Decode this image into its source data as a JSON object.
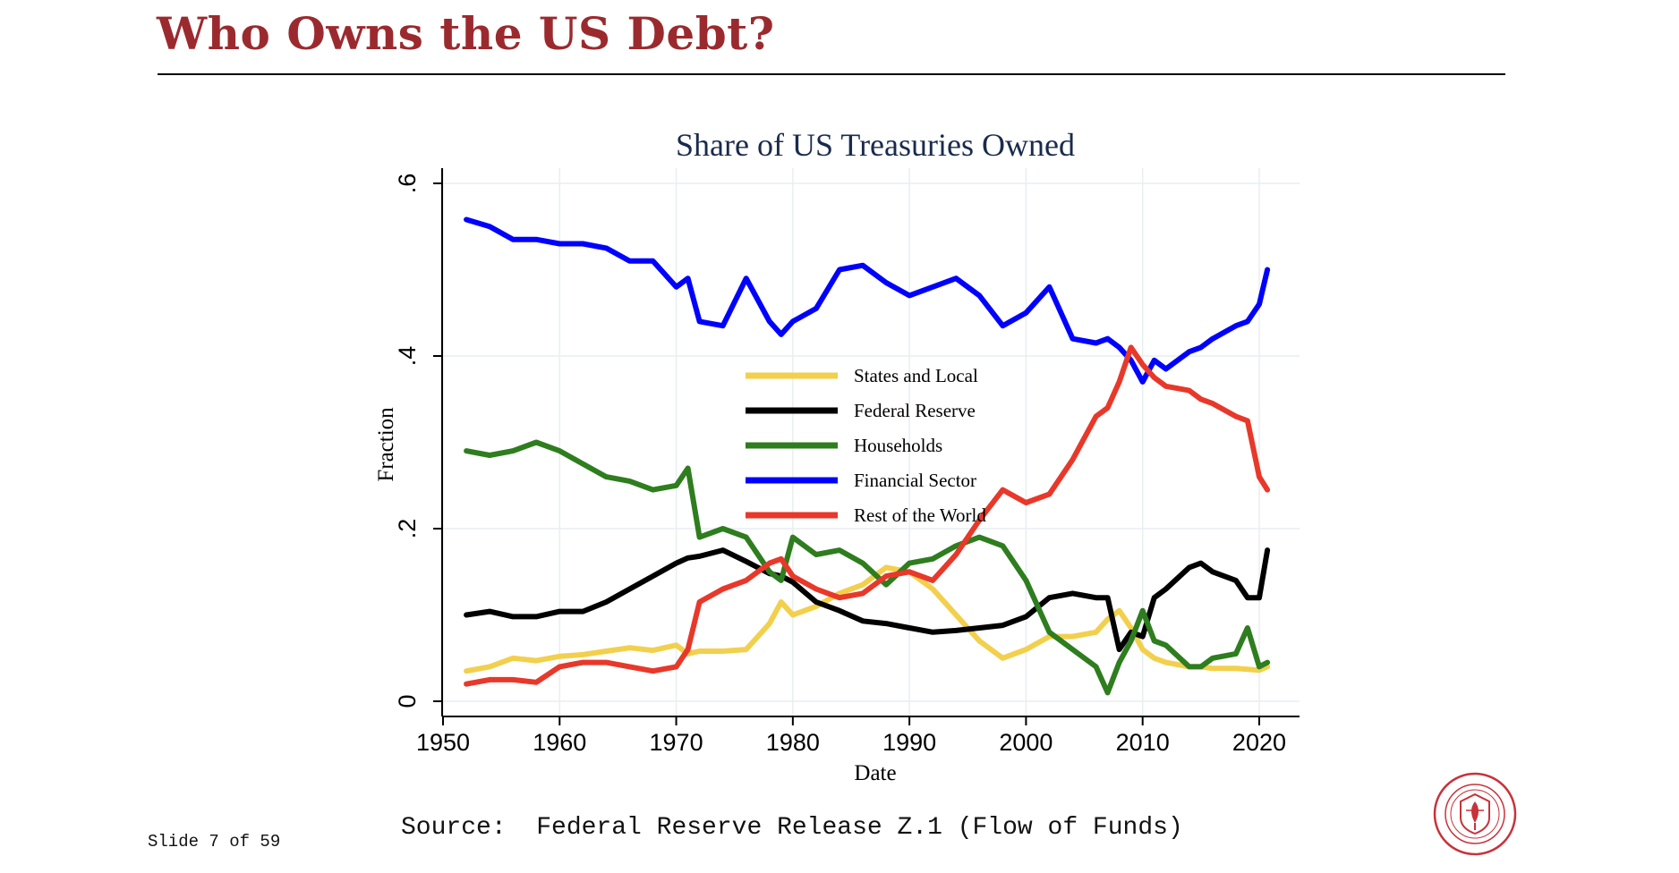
{
  "slide": {
    "title": "Who Owns the US Debt?",
    "source": "Source:  Federal Reserve Release Z.1 (Flow of Funds)",
    "slide_number": "Slide 7 of 59",
    "accent_color": "#9b2a2e"
  },
  "chart_data": {
    "type": "line",
    "title": "Share of US Treasuries Owned",
    "xlabel": "Date",
    "ylabel": "Fraction",
    "xlim": [
      1950,
      2021
    ],
    "ylim": [
      0,
      0.62
    ],
    "x_ticks": [
      1950,
      1960,
      1970,
      1980,
      1990,
      2000,
      2010,
      2020
    ],
    "x_tick_labels": [
      "1950",
      "1960",
      "1970",
      "1980",
      "1990",
      "2000",
      "2010",
      "2020"
    ],
    "y_ticks": [
      0,
      0.2,
      0.4,
      0.6
    ],
    "y_tick_labels": [
      "0",
      ".2",
      ".4",
      ".6"
    ],
    "grid": true,
    "legend_position": "center",
    "x": [
      1952,
      1954,
      1956,
      1958,
      1960,
      1962,
      1964,
      1966,
      1968,
      1970,
      1971,
      1972,
      1974,
      1976,
      1978,
      1979,
      1980,
      1982,
      1984,
      1986,
      1988,
      1990,
      1992,
      1994,
      1996,
      1998,
      2000,
      2002,
      2004,
      2006,
      2007,
      2008,
      2009,
      2010,
      2011,
      2012,
      2014,
      2015,
      2016,
      2018,
      2019,
      2020,
      2020.7
    ],
    "series": [
      {
        "name": "States and Local",
        "color": "#f2d04d",
        "values": [
          0.035,
          0.04,
          0.05,
          0.047,
          0.052,
          0.054,
          0.058,
          0.062,
          0.059,
          0.065,
          0.055,
          0.058,
          0.058,
          0.06,
          0.09,
          0.115,
          0.1,
          0.11,
          0.125,
          0.135,
          0.155,
          0.15,
          0.13,
          0.1,
          0.07,
          0.05,
          0.06,
          0.075,
          0.075,
          0.08,
          0.095,
          0.105,
          0.085,
          0.06,
          0.05,
          0.045,
          0.04,
          0.04,
          0.038,
          0.038,
          0.037,
          0.036,
          0.04
        ]
      },
      {
        "name": "Federal Reserve",
        "color": "#000000",
        "values": [
          0.1,
          0.104,
          0.098,
          0.098,
          0.104,
          0.104,
          0.115,
          0.13,
          0.145,
          0.16,
          0.166,
          0.168,
          0.175,
          0.162,
          0.148,
          0.145,
          0.138,
          0.115,
          0.105,
          0.093,
          0.09,
          0.085,
          0.08,
          0.082,
          0.085,
          0.088,
          0.098,
          0.12,
          0.125,
          0.12,
          0.12,
          0.06,
          0.08,
          0.075,
          0.12,
          0.13,
          0.155,
          0.16,
          0.15,
          0.14,
          0.12,
          0.12,
          0.175
        ]
      },
      {
        "name": "Households",
        "color": "#2e7d1e",
        "values": [
          0.29,
          0.285,
          0.29,
          0.3,
          0.29,
          0.275,
          0.26,
          0.255,
          0.245,
          0.25,
          0.27,
          0.19,
          0.2,
          0.19,
          0.15,
          0.14,
          0.19,
          0.17,
          0.175,
          0.16,
          0.135,
          0.16,
          0.165,
          0.18,
          0.19,
          0.18,
          0.14,
          0.08,
          0.06,
          0.04,
          0.01,
          0.045,
          0.07,
          0.105,
          0.07,
          0.065,
          0.04,
          0.04,
          0.05,
          0.055,
          0.085,
          0.04,
          0.045
        ]
      },
      {
        "name": "Financial Sector",
        "color": "#0000ff",
        "values": [
          0.558,
          0.55,
          0.535,
          0.535,
          0.53,
          0.53,
          0.525,
          0.51,
          0.51,
          0.48,
          0.49,
          0.44,
          0.435,
          0.49,
          0.44,
          0.425,
          0.44,
          0.455,
          0.5,
          0.505,
          0.485,
          0.47,
          0.48,
          0.49,
          0.47,
          0.435,
          0.45,
          0.48,
          0.42,
          0.415,
          0.42,
          0.41,
          0.395,
          0.37,
          0.395,
          0.385,
          0.405,
          0.41,
          0.42,
          0.435,
          0.44,
          0.46,
          0.5
        ]
      },
      {
        "name": "Rest of the World",
        "color": "#e8382a",
        "values": [
          0.02,
          0.025,
          0.025,
          0.022,
          0.04,
          0.045,
          0.045,
          0.04,
          0.035,
          0.04,
          0.06,
          0.115,
          0.13,
          0.14,
          0.16,
          0.165,
          0.145,
          0.13,
          0.12,
          0.125,
          0.145,
          0.15,
          0.14,
          0.17,
          0.21,
          0.245,
          0.23,
          0.24,
          0.28,
          0.33,
          0.34,
          0.37,
          0.41,
          0.39,
          0.375,
          0.365,
          0.36,
          0.35,
          0.345,
          0.33,
          0.325,
          0.26,
          0.245
        ]
      }
    ]
  }
}
